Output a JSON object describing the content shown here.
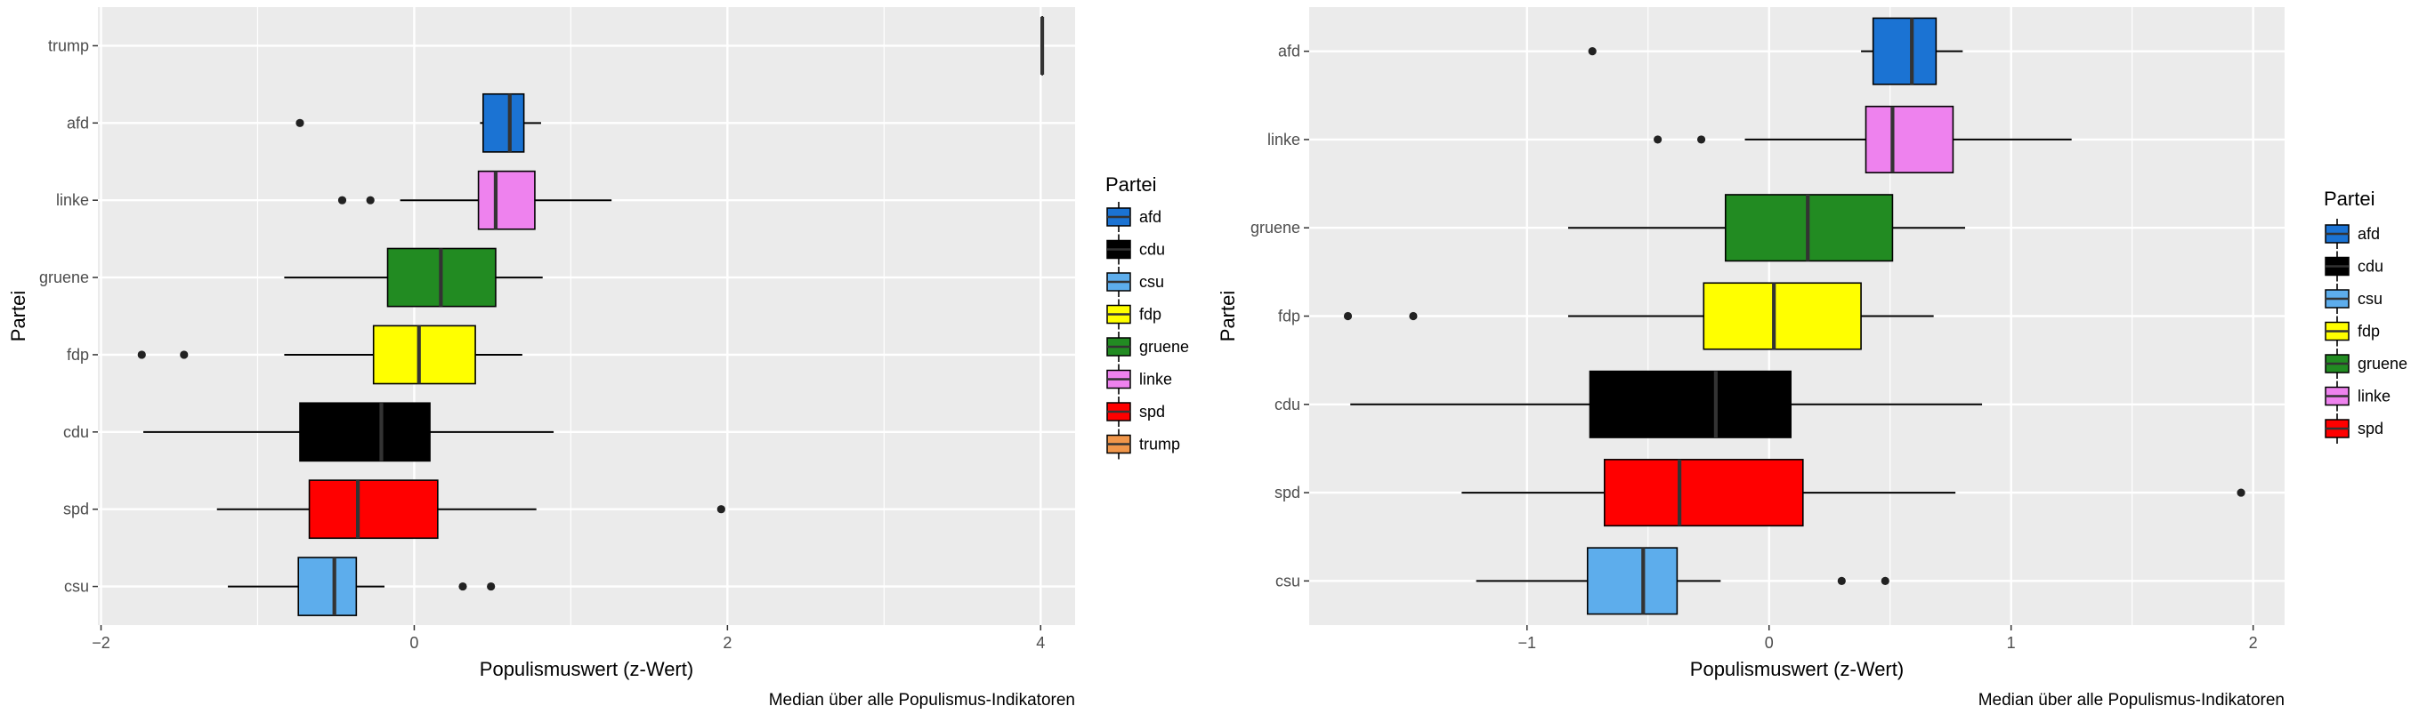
{
  "chart_data": [
    {
      "type": "boxplot",
      "orientation": "horizontal",
      "xlabel": "Populismuswert (z-Wert)",
      "ylabel": "Partei",
      "caption": "Median über alle Populismus-Indikatoren",
      "xlim": [
        -2.02,
        4.22
      ],
      "xticks": [
        -2,
        0,
        2,
        4
      ],
      "xtick_labels": [
        "−2",
        "0",
        "2",
        "4"
      ],
      "grid": true,
      "legend_title": "Partei",
      "legend_position": "right",
      "categories": [
        "trump",
        "afd",
        "linke",
        "gruene",
        "fdp",
        "cdu",
        "spd",
        "csu"
      ],
      "boxes": [
        {
          "label": "trump",
          "whisker_low": 4.01,
          "q1": 4.01,
          "median": 4.01,
          "q3": 4.01,
          "whisker_high": 4.01,
          "outliers": [],
          "color": "#F0964A"
        },
        {
          "label": "afd",
          "whisker_low": 0.42,
          "q1": 0.44,
          "median": 0.61,
          "q3": 0.7,
          "whisker_high": 0.81,
          "outliers": [
            -0.73
          ],
          "color": "#1B73D3"
        },
        {
          "label": "linke",
          "whisker_low": -0.09,
          "q1": 0.41,
          "median": 0.52,
          "q3": 0.77,
          "whisker_high": 1.26,
          "outliers": [
            -0.46,
            -0.28
          ],
          "color": "#EE82EE"
        },
        {
          "label": "gruene",
          "whisker_low": -0.83,
          "q1": -0.17,
          "median": 0.17,
          "q3": 0.52,
          "whisker_high": 0.82,
          "outliers": [],
          "color": "#228B22"
        },
        {
          "label": "fdp",
          "whisker_low": -0.83,
          "q1": -0.26,
          "median": 0.03,
          "q3": 0.39,
          "whisker_high": 0.69,
          "outliers": [
            -1.74,
            -1.47
          ],
          "color": "#FFFF00"
        },
        {
          "label": "cdu",
          "whisker_low": -1.73,
          "q1": -0.73,
          "median": -0.21,
          "q3": 0.1,
          "whisker_high": 0.89,
          "outliers": [],
          "color": "#000000"
        },
        {
          "label": "spd",
          "whisker_low": -1.26,
          "q1": -0.67,
          "median": -0.36,
          "q3": 0.15,
          "whisker_high": 0.78,
          "outliers": [
            1.96
          ],
          "color": "#FF0000"
        },
        {
          "label": "csu",
          "whisker_low": -1.19,
          "q1": -0.74,
          "median": -0.51,
          "q3": -0.37,
          "whisker_high": -0.19,
          "outliers": [
            0.31,
            0.49
          ],
          "color": "#5DADEC"
        }
      ],
      "legend": [
        {
          "label": "afd",
          "color": "#1B73D3"
        },
        {
          "label": "cdu",
          "color": "#000000"
        },
        {
          "label": "csu",
          "color": "#5DADEC"
        },
        {
          "label": "fdp",
          "color": "#FFFF00"
        },
        {
          "label": "gruene",
          "color": "#228B22"
        },
        {
          "label": "linke",
          "color": "#EE82EE"
        },
        {
          "label": "spd",
          "color": "#FF0000"
        },
        {
          "label": "trump",
          "color": "#F0964A"
        }
      ]
    },
    {
      "type": "boxplot",
      "orientation": "horizontal",
      "xlabel": "Populismuswert (z-Wert)",
      "ylabel": "Partei",
      "caption": "Median über alle Populismus-Indikatoren",
      "xlim": [
        -1.9,
        2.13
      ],
      "xticks": [
        -1,
        0,
        1,
        2
      ],
      "xtick_labels": [
        "−1",
        "0",
        "1",
        "2"
      ],
      "grid": true,
      "legend_title": "Partei",
      "legend_position": "right",
      "categories": [
        "afd",
        "linke",
        "gruene",
        "fdp",
        "cdu",
        "spd",
        "csu"
      ],
      "boxes": [
        {
          "label": "afd",
          "whisker_low": 0.38,
          "q1": 0.43,
          "median": 0.59,
          "q3": 0.69,
          "whisker_high": 0.8,
          "outliers": [
            -0.73
          ],
          "color": "#1B73D3"
        },
        {
          "label": "linke",
          "whisker_low": -0.1,
          "q1": 0.4,
          "median": 0.51,
          "q3": 0.76,
          "whisker_high": 1.25,
          "outliers": [
            -0.46,
            -0.28
          ],
          "color": "#EE82EE"
        },
        {
          "label": "gruene",
          "whisker_low": -0.83,
          "q1": -0.18,
          "median": 0.16,
          "q3": 0.51,
          "whisker_high": 0.81,
          "outliers": [],
          "color": "#228B22"
        },
        {
          "label": "fdp",
          "whisker_low": -0.83,
          "q1": -0.27,
          "median": 0.02,
          "q3": 0.38,
          "whisker_high": 0.68,
          "outliers": [
            -1.74,
            -1.47
          ],
          "color": "#FFFF00"
        },
        {
          "label": "cdu",
          "whisker_low": -1.73,
          "q1": -0.74,
          "median": -0.22,
          "q3": 0.09,
          "whisker_high": 0.88,
          "outliers": [],
          "color": "#000000"
        },
        {
          "label": "spd",
          "whisker_low": -1.27,
          "q1": -0.68,
          "median": -0.37,
          "q3": 0.14,
          "whisker_high": 0.77,
          "outliers": [
            1.95
          ],
          "color": "#FF0000"
        },
        {
          "label": "csu",
          "whisker_low": -1.21,
          "q1": -0.75,
          "median": -0.52,
          "q3": -0.38,
          "whisker_high": -0.2,
          "outliers": [
            0.3,
            0.48
          ],
          "color": "#5DADEC"
        }
      ],
      "legend": [
        {
          "label": "afd",
          "color": "#1B73D3"
        },
        {
          "label": "cdu",
          "color": "#000000"
        },
        {
          "label": "csu",
          "color": "#5DADEC"
        },
        {
          "label": "fdp",
          "color": "#FFFF00"
        },
        {
          "label": "gruene",
          "color": "#228B22"
        },
        {
          "label": "linke",
          "color": "#EE82EE"
        },
        {
          "label": "spd",
          "color": "#FF0000"
        }
      ]
    }
  ]
}
